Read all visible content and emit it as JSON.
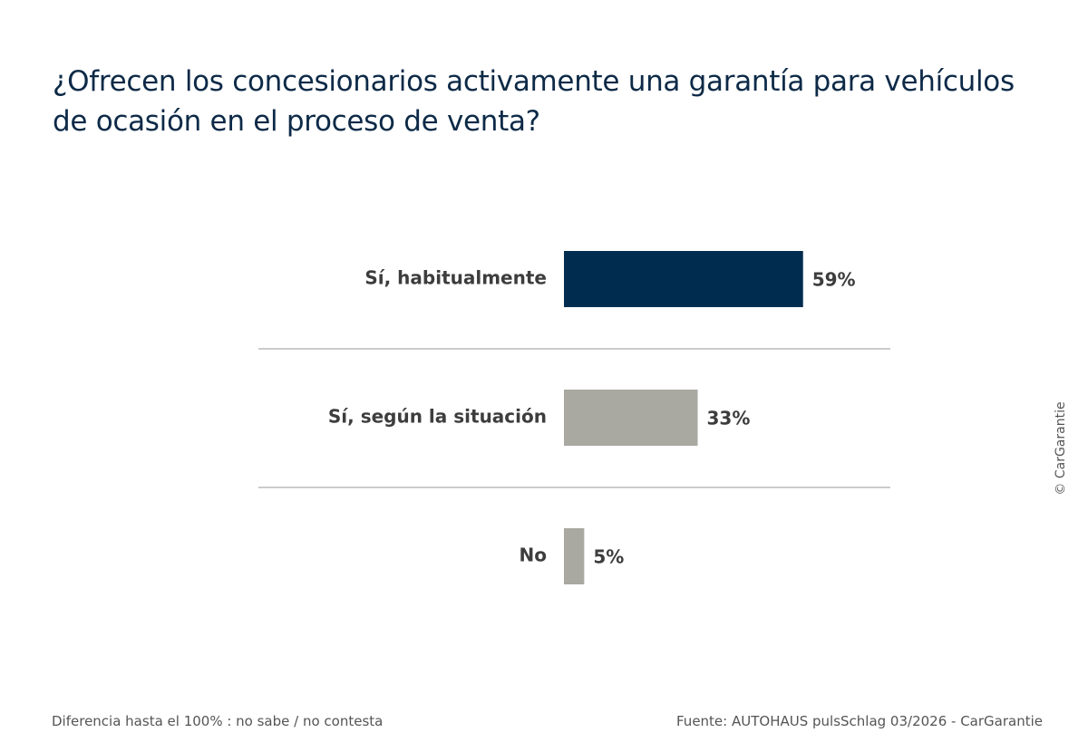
{
  "chart_data": {
    "type": "bar",
    "orientation": "horizontal",
    "title": "¿Ofrecen los concesionarios activamente una garantía para vehículos de ocasión en el proceso de venta?",
    "categories": [
      "Sí, habitualmente",
      "Sí, según la situación",
      "No"
    ],
    "values": [
      59,
      33,
      5
    ],
    "value_labels": [
      "59%",
      "33%",
      "5%"
    ],
    "unit": "%",
    "colors": [
      "#002d4f",
      "#aaa9a1",
      "#aaa9a1"
    ],
    "separator_color": "#9a9a9a",
    "grid": false,
    "legend": "none"
  },
  "footnote": "Diferencia hasta el 100% : no sabe / no contesta",
  "source": "Fuente: AUTOHAUS pulsSchlag 03/2026 - CarGarantie",
  "copyright": "© CarGarantie"
}
